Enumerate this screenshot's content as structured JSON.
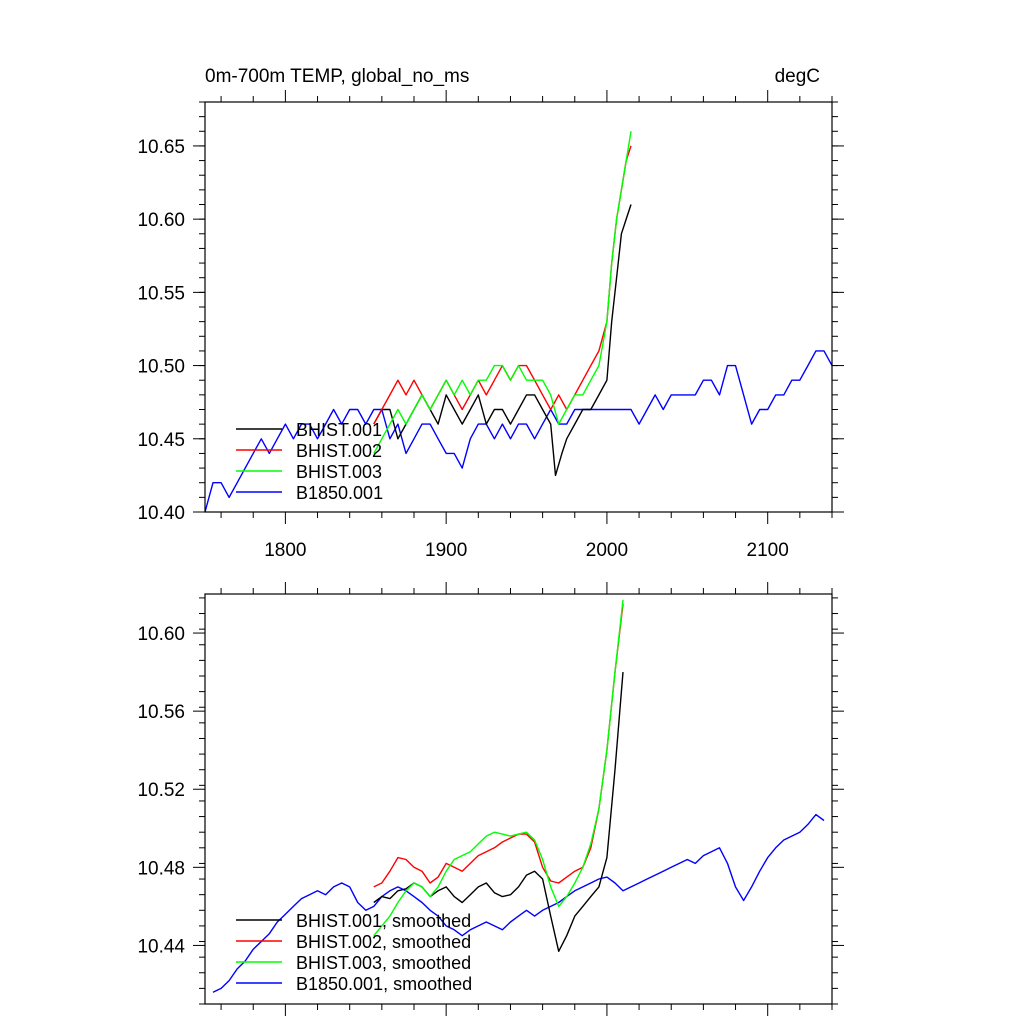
{
  "chart_data": [
    {
      "type": "line",
      "title_left": "0m-700m TEMP, global_no_ms",
      "title_right": "degC",
      "xlim": [
        1750,
        2140
      ],
      "ylim": [
        10.4,
        10.68
      ],
      "xticks": [
        1800,
        1900,
        2000,
        2100
      ],
      "xtick_labels": [
        "1800",
        "1900",
        "2000",
        "2100"
      ],
      "yticks": [
        10.4,
        10.45,
        10.5,
        10.55,
        10.6,
        10.65
      ],
      "ytick_labels": [
        "10.40",
        "10.45",
        "10.50",
        "10.55",
        "10.60",
        "10.65"
      ],
      "legend_position": "bottom-left",
      "series": [
        {
          "name": "BHIST.001",
          "color": "#000000",
          "x": [
            1855,
            1860,
            1865,
            1870,
            1875,
            1880,
            1885,
            1890,
            1895,
            1900,
            1905,
            1910,
            1915,
            1920,
            1925,
            1930,
            1935,
            1940,
            1945,
            1950,
            1955,
            1960,
            1965,
            1968,
            1972,
            1975,
            1980,
            1985,
            1990,
            1995,
            2000,
            2003,
            2006,
            2009,
            2012,
            2015
          ],
          "y": [
            10.46,
            10.47,
            10.47,
            10.45,
            10.46,
            10.47,
            10.48,
            10.47,
            10.46,
            10.48,
            10.47,
            10.46,
            10.47,
            10.48,
            10.46,
            10.47,
            10.47,
            10.46,
            10.47,
            10.48,
            10.48,
            10.47,
            10.46,
            10.425,
            10.44,
            10.45,
            10.46,
            10.47,
            10.47,
            10.48,
            10.49,
            10.53,
            10.56,
            10.59,
            10.6,
            10.61
          ]
        },
        {
          "name": "BHIST.002",
          "color": "#ff0000",
          "x": [
            1855,
            1860,
            1865,
            1870,
            1875,
            1880,
            1885,
            1890,
            1895,
            1900,
            1905,
            1910,
            1915,
            1920,
            1925,
            1930,
            1935,
            1940,
            1945,
            1950,
            1955,
            1960,
            1965,
            1970,
            1975,
            1980,
            1985,
            1990,
            1995,
            2000,
            2003,
            2006,
            2009,
            2012,
            2015
          ],
          "y": [
            10.46,
            10.47,
            10.48,
            10.49,
            10.48,
            10.49,
            10.48,
            10.47,
            10.48,
            10.49,
            10.48,
            10.47,
            10.48,
            10.49,
            10.48,
            10.49,
            10.5,
            10.49,
            10.5,
            10.5,
            10.49,
            10.48,
            10.47,
            10.48,
            10.47,
            10.48,
            10.49,
            10.5,
            10.51,
            10.53,
            10.57,
            10.6,
            10.62,
            10.64,
            10.65
          ]
        },
        {
          "name": "BHIST.003",
          "color": "#00ff00",
          "x": [
            1855,
            1860,
            1865,
            1870,
            1875,
            1880,
            1885,
            1890,
            1895,
            1900,
            1905,
            1910,
            1915,
            1920,
            1925,
            1930,
            1935,
            1940,
            1945,
            1950,
            1955,
            1960,
            1965,
            1970,
            1975,
            1980,
            1985,
            1990,
            1995,
            2000,
            2003,
            2006,
            2009,
            2012,
            2015
          ],
          "y": [
            10.44,
            10.45,
            10.46,
            10.47,
            10.46,
            10.47,
            10.48,
            10.47,
            10.48,
            10.49,
            10.48,
            10.49,
            10.48,
            10.49,
            10.49,
            10.5,
            10.5,
            10.49,
            10.5,
            10.49,
            10.49,
            10.49,
            10.48,
            10.46,
            10.47,
            10.48,
            10.48,
            10.49,
            10.5,
            10.53,
            10.57,
            10.6,
            10.62,
            10.64,
            10.66
          ]
        },
        {
          "name": "B1850.001",
          "color": "#0000ff",
          "x": [
            1750,
            1755,
            1760,
            1765,
            1770,
            1775,
            1780,
            1785,
            1790,
            1795,
            1800,
            1805,
            1810,
            1815,
            1820,
            1825,
            1830,
            1835,
            1840,
            1845,
            1850,
            1855,
            1860,
            1865,
            1870,
            1875,
            1880,
            1885,
            1890,
            1895,
            1900,
            1905,
            1910,
            1915,
            1920,
            1925,
            1930,
            1935,
            1940,
            1945,
            1950,
            1955,
            1960,
            1965,
            1970,
            1975,
            1980,
            1985,
            1990,
            1995,
            2000,
            2005,
            2010,
            2015,
            2020,
            2025,
            2030,
            2035,
            2040,
            2045,
            2050,
            2055,
            2060,
            2065,
            2070,
            2075,
            2080,
            2085,
            2090,
            2095,
            2100,
            2105,
            2110,
            2115,
            2120,
            2125,
            2130,
            2135,
            2140
          ],
          "y": [
            10.4,
            10.42,
            10.42,
            10.41,
            10.42,
            10.43,
            10.44,
            10.45,
            10.44,
            10.45,
            10.46,
            10.45,
            10.46,
            10.46,
            10.45,
            10.46,
            10.47,
            10.46,
            10.47,
            10.47,
            10.46,
            10.47,
            10.47,
            10.45,
            10.46,
            10.44,
            10.45,
            10.46,
            10.46,
            10.45,
            10.44,
            10.44,
            10.43,
            10.45,
            10.46,
            10.46,
            10.45,
            10.46,
            10.45,
            10.46,
            10.46,
            10.45,
            10.46,
            10.47,
            10.46,
            10.46,
            10.47,
            10.47,
            10.47,
            10.47,
            10.47,
            10.47,
            10.47,
            10.47,
            10.46,
            10.47,
            10.48,
            10.47,
            10.48,
            10.48,
            10.48,
            10.48,
            10.49,
            10.49,
            10.48,
            10.5,
            10.5,
            10.48,
            10.46,
            10.47,
            10.47,
            10.48,
            10.48,
            10.49,
            10.49,
            10.5,
            10.51,
            10.51,
            10.5
          ]
        }
      ]
    },
    {
      "type": "line",
      "xlim": [
        1750,
        2140
      ],
      "ylim": [
        10.41,
        10.62
      ],
      "xticks": [
        1800,
        1900,
        2000,
        2100
      ],
      "yticks": [
        10.44,
        10.48,
        10.52,
        10.56,
        10.6
      ],
      "ytick_labels": [
        "10.44",
        "10.48",
        "10.52",
        "10.56",
        "10.60"
      ],
      "legend_position": "bottom-left",
      "series": [
        {
          "name": "BHIST.001, smoothed",
          "color": "#000000",
          "x": [
            1855,
            1860,
            1865,
            1870,
            1875,
            1880,
            1885,
            1890,
            1895,
            1900,
            1905,
            1910,
            1915,
            1920,
            1925,
            1930,
            1935,
            1940,
            1945,
            1950,
            1955,
            1960,
            1965,
            1970,
            1975,
            1980,
            1985,
            1990,
            1995,
            2000,
            2005,
            2010
          ],
          "y": [
            10.462,
            10.465,
            10.464,
            10.468,
            10.469,
            10.472,
            10.47,
            10.465,
            10.468,
            10.47,
            10.465,
            10.462,
            10.466,
            10.47,
            10.472,
            10.467,
            10.465,
            10.466,
            10.47,
            10.476,
            10.478,
            10.474,
            10.455,
            10.437,
            10.445,
            10.455,
            10.46,
            10.465,
            10.47,
            10.485,
            10.53,
            10.58
          ]
        },
        {
          "name": "BHIST.002, smoothed",
          "color": "#ff0000",
          "x": [
            1855,
            1860,
            1865,
            1870,
            1875,
            1880,
            1885,
            1890,
            1895,
            1900,
            1905,
            1910,
            1915,
            1920,
            1925,
            1930,
            1935,
            1940,
            1945,
            1950,
            1955,
            1960,
            1965,
            1970,
            1975,
            1980,
            1985,
            1990,
            1995,
            2000,
            2005,
            2010
          ],
          "y": [
            10.47,
            10.472,
            10.478,
            10.485,
            10.484,
            10.48,
            10.478,
            10.472,
            10.475,
            10.482,
            10.48,
            10.478,
            10.482,
            10.486,
            10.488,
            10.49,
            10.493,
            10.495,
            10.497,
            10.497,
            10.493,
            10.48,
            10.473,
            10.472,
            10.475,
            10.478,
            10.48,
            10.49,
            10.51,
            10.54,
            10.58,
            10.615
          ]
        },
        {
          "name": "BHIST.003, smoothed",
          "color": "#00ff00",
          "x": [
            1855,
            1860,
            1865,
            1870,
            1875,
            1880,
            1885,
            1890,
            1895,
            1900,
            1905,
            1910,
            1915,
            1920,
            1925,
            1930,
            1935,
            1940,
            1945,
            1950,
            1955,
            1960,
            1965,
            1970,
            1975,
            1980,
            1985,
            1990,
            1995,
            2000,
            2005,
            2010
          ],
          "y": [
            10.445,
            10.45,
            10.455,
            10.462,
            10.468,
            10.472,
            10.47,
            10.465,
            10.47,
            10.478,
            10.484,
            10.486,
            10.488,
            10.492,
            10.496,
            10.498,
            10.497,
            10.496,
            10.497,
            10.498,
            10.494,
            10.484,
            10.47,
            10.46,
            10.465,
            10.472,
            10.48,
            10.492,
            10.51,
            10.54,
            10.58,
            10.617
          ]
        },
        {
          "name": "B1850.001, smoothed",
          "color": "#0000ff",
          "x": [
            1755,
            1760,
            1765,
            1770,
            1775,
            1780,
            1785,
            1790,
            1795,
            1800,
            1805,
            1810,
            1815,
            1820,
            1825,
            1830,
            1835,
            1840,
            1845,
            1850,
            1855,
            1860,
            1865,
            1870,
            1875,
            1880,
            1885,
            1890,
            1895,
            1900,
            1905,
            1910,
            1915,
            1920,
            1925,
            1930,
            1935,
            1940,
            1945,
            1950,
            1955,
            1960,
            1965,
            1970,
            1975,
            1980,
            1985,
            1990,
            1995,
            2000,
            2005,
            2010,
            2015,
            2020,
            2025,
            2030,
            2035,
            2040,
            2045,
            2050,
            2055,
            2060,
            2065,
            2070,
            2075,
            2080,
            2085,
            2090,
            2095,
            2100,
            2105,
            2110,
            2115,
            2120,
            2125,
            2130,
            2135
          ],
          "y": [
            10.416,
            10.418,
            10.422,
            10.428,
            10.432,
            10.438,
            10.442,
            10.446,
            10.452,
            10.456,
            10.46,
            10.464,
            10.466,
            10.468,
            10.466,
            10.47,
            10.472,
            10.47,
            10.462,
            10.458,
            10.46,
            10.465,
            10.468,
            10.47,
            10.468,
            10.465,
            10.462,
            10.458,
            10.455,
            10.45,
            10.448,
            10.445,
            10.448,
            10.45,
            10.452,
            10.45,
            10.448,
            10.452,
            10.455,
            10.458,
            10.455,
            10.458,
            10.46,
            10.462,
            10.465,
            10.468,
            10.47,
            10.472,
            10.474,
            10.475,
            10.472,
            10.468,
            10.47,
            10.472,
            10.474,
            10.476,
            10.478,
            10.48,
            10.482,
            10.484,
            10.482,
            10.486,
            10.488,
            10.49,
            10.482,
            10.47,
            10.463,
            10.47,
            10.478,
            10.485,
            10.49,
            10.494,
            10.496,
            10.498,
            10.502,
            10.507,
            10.504
          ]
        }
      ]
    }
  ]
}
